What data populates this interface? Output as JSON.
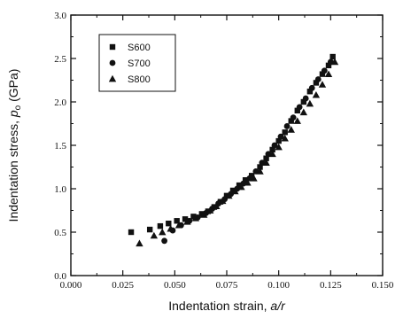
{
  "chart_data": {
    "type": "scatter",
    "xlabel": {
      "main": "Indentation strain, ",
      "italic": "a/r"
    },
    "ylabel": {
      "main": "Indentation stress, ",
      "italic": "p",
      "sub": "o",
      "unit": " (GPa)"
    },
    "xlim": [
      0.0,
      0.15
    ],
    "ylim": [
      0.0,
      3.0
    ],
    "x_ticks": [
      "0.000",
      "0.025",
      "0.050",
      "0.075",
      "0.100",
      "0.125",
      "0.150"
    ],
    "y_ticks": [
      "0.0",
      "0.5",
      "1.0",
      "1.5",
      "2.0",
      "2.5",
      "3.0"
    ],
    "legend_position": "top-left",
    "grid": false,
    "series": [
      {
        "name": "S600",
        "marker": "square",
        "color": "#111111",
        "points": [
          [
            0.029,
            0.5
          ],
          [
            0.038,
            0.53
          ],
          [
            0.043,
            0.57
          ],
          [
            0.047,
            0.6
          ],
          [
            0.051,
            0.63
          ],
          [
            0.055,
            0.65
          ],
          [
            0.059,
            0.68
          ],
          [
            0.063,
            0.71
          ],
          [
            0.066,
            0.74
          ],
          [
            0.069,
            0.79
          ],
          [
            0.072,
            0.85
          ],
          [
            0.075,
            0.92
          ],
          [
            0.078,
            0.98
          ],
          [
            0.081,
            1.04
          ],
          [
            0.084,
            1.1
          ],
          [
            0.087,
            1.15
          ],
          [
            0.091,
            1.25
          ],
          [
            0.094,
            1.35
          ],
          [
            0.097,
            1.45
          ],
          [
            0.1,
            1.55
          ],
          [
            0.103,
            1.65
          ],
          [
            0.106,
            1.78
          ],
          [
            0.109,
            1.9
          ],
          [
            0.112,
            2.0
          ],
          [
            0.115,
            2.12
          ],
          [
            0.118,
            2.22
          ],
          [
            0.121,
            2.32
          ],
          [
            0.124,
            2.42
          ],
          [
            0.126,
            2.52
          ]
        ]
      },
      {
        "name": "S700",
        "marker": "circle",
        "color": "#111111",
        "points": [
          [
            0.045,
            0.4
          ],
          [
            0.049,
            0.52
          ],
          [
            0.053,
            0.58
          ],
          [
            0.057,
            0.63
          ],
          [
            0.061,
            0.67
          ],
          [
            0.065,
            0.72
          ],
          [
            0.068,
            0.77
          ],
          [
            0.071,
            0.83
          ],
          [
            0.074,
            0.88
          ],
          [
            0.077,
            0.94
          ],
          [
            0.08,
            1.0
          ],
          [
            0.083,
            1.06
          ],
          [
            0.086,
            1.12
          ],
          [
            0.089,
            1.2
          ],
          [
            0.092,
            1.3
          ],
          [
            0.095,
            1.4
          ],
          [
            0.098,
            1.5
          ],
          [
            0.101,
            1.6
          ],
          [
            0.104,
            1.72
          ],
          [
            0.107,
            1.82
          ],
          [
            0.11,
            1.94
          ],
          [
            0.113,
            2.04
          ],
          [
            0.116,
            2.16
          ],
          [
            0.119,
            2.26
          ],
          [
            0.122,
            2.36
          ],
          [
            0.125,
            2.46
          ]
        ]
      },
      {
        "name": "S800",
        "marker": "triangle",
        "color": "#111111",
        "points": [
          [
            0.033,
            0.37
          ],
          [
            0.04,
            0.46
          ],
          [
            0.044,
            0.5
          ],
          [
            0.048,
            0.54
          ],
          [
            0.052,
            0.58
          ],
          [
            0.056,
            0.62
          ],
          [
            0.06,
            0.66
          ],
          [
            0.064,
            0.7
          ],
          [
            0.067,
            0.75
          ],
          [
            0.07,
            0.8
          ],
          [
            0.073,
            0.86
          ],
          [
            0.076,
            0.92
          ],
          [
            0.079,
            0.97
          ],
          [
            0.082,
            1.02
          ],
          [
            0.085,
            1.07
          ],
          [
            0.088,
            1.12
          ],
          [
            0.091,
            1.2
          ],
          [
            0.094,
            1.3
          ],
          [
            0.097,
            1.4
          ],
          [
            0.1,
            1.48
          ],
          [
            0.103,
            1.58
          ],
          [
            0.106,
            1.68
          ],
          [
            0.109,
            1.78
          ],
          [
            0.112,
            1.88
          ],
          [
            0.115,
            1.98
          ],
          [
            0.118,
            2.08
          ],
          [
            0.121,
            2.2
          ],
          [
            0.124,
            2.32
          ],
          [
            0.127,
            2.46
          ]
        ]
      }
    ]
  }
}
